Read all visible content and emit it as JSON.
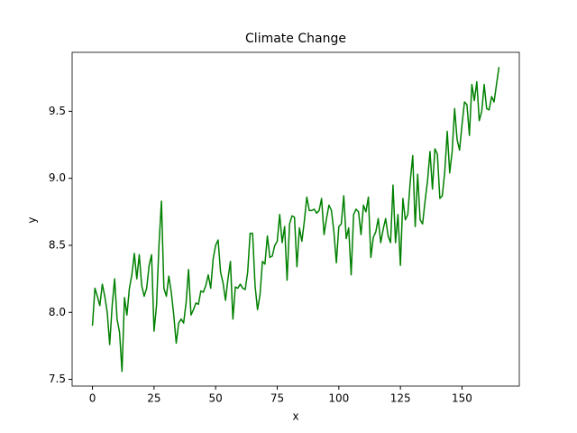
{
  "chart_data": {
    "type": "line",
    "title": "Climate Change",
    "x_label": "x",
    "y_label": "y",
    "x": [
      0,
      1,
      2,
      3,
      4,
      5,
      6,
      7,
      8,
      9,
      10,
      11,
      12,
      13,
      14,
      15,
      16,
      17,
      18,
      19,
      20,
      21,
      22,
      23,
      24,
      25,
      26,
      27,
      28,
      29,
      30,
      31,
      32,
      33,
      34,
      35,
      36,
      37,
      38,
      39,
      40,
      41,
      42,
      43,
      44,
      45,
      46,
      47,
      48,
      49,
      50,
      51,
      52,
      53,
      54,
      55,
      56,
      57,
      58,
      59,
      60,
      61,
      62,
      63,
      64,
      65,
      66,
      67,
      68,
      69,
      70,
      71,
      72,
      73,
      74,
      75,
      76,
      77,
      78,
      79,
      80,
      81,
      82,
      83,
      84,
      85,
      86,
      87,
      88,
      89,
      90,
      91,
      92,
      93,
      94,
      95,
      96,
      97,
      98,
      99,
      100,
      101,
      102,
      103,
      104,
      105,
      106,
      107,
      108,
      109,
      110,
      111,
      112,
      113,
      114,
      115,
      116,
      117,
      118,
      119,
      120,
      121,
      122,
      123,
      124,
      125,
      126,
      127,
      128,
      129,
      130,
      131,
      132,
      133,
      134,
      135,
      136,
      137,
      138,
      139,
      140,
      141,
      142,
      143,
      144,
      145,
      146,
      147,
      148,
      149,
      150,
      151,
      152,
      153,
      154,
      155,
      156,
      157,
      158,
      159,
      160,
      161,
      162,
      163,
      164,
      165
    ],
    "series": [
      {
        "color": "#008000",
        "values": [
          7.9,
          8.18,
          8.12,
          8.05,
          8.21,
          8.12,
          8.0,
          7.76,
          8.05,
          8.25,
          7.95,
          7.85,
          7.56,
          8.11,
          7.98,
          8.18,
          8.28,
          8.44,
          8.25,
          8.43,
          8.2,
          8.12,
          8.18,
          8.35,
          8.43,
          7.86,
          8.05,
          8.5,
          8.83,
          8.18,
          8.12,
          8.27,
          8.15,
          7.98,
          7.77,
          7.92,
          7.95,
          7.92,
          8.07,
          8.32,
          7.98,
          8.02,
          8.07,
          8.06,
          8.16,
          8.15,
          8.2,
          8.28,
          8.18,
          8.4,
          8.5,
          8.54,
          8.3,
          8.22,
          8.09,
          8.25,
          8.38,
          7.95,
          8.19,
          8.18,
          8.21,
          8.18,
          8.17,
          8.3,
          8.59,
          8.59,
          8.2,
          8.02,
          8.13,
          8.38,
          8.36,
          8.57,
          8.41,
          8.42,
          8.5,
          8.53,
          8.73,
          8.52,
          8.64,
          8.24,
          8.66,
          8.72,
          8.71,
          8.34,
          8.63,
          8.53,
          8.68,
          8.86,
          8.76,
          8.76,
          8.77,
          8.74,
          8.76,
          8.85,
          8.58,
          8.7,
          8.8,
          8.76,
          8.6,
          8.37,
          8.64,
          8.66,
          8.87,
          8.55,
          8.63,
          8.28,
          8.73,
          8.77,
          8.75,
          8.58,
          8.8,
          8.75,
          8.86,
          8.41,
          8.56,
          8.6,
          8.7,
          8.52,
          8.62,
          8.7,
          8.57,
          8.52,
          8.95,
          8.52,
          8.73,
          8.35,
          8.85,
          8.69,
          8.73,
          8.98,
          9.17,
          8.64,
          9.03,
          8.69,
          8.66,
          8.83,
          8.98,
          9.2,
          8.92,
          9.22,
          9.18,
          8.85,
          8.87,
          9.05,
          9.35,
          9.04,
          9.2,
          9.52,
          9.29,
          9.21,
          9.4,
          9.57,
          9.55,
          9.32,
          9.7,
          9.58,
          9.72,
          9.43,
          9.5,
          9.7,
          9.52,
          9.51,
          9.61,
          9.57,
          9.7,
          9.83
        ]
      }
    ],
    "xlim": [
      -8.25,
      173.25
    ],
    "xticks": [
      0,
      25,
      50,
      75,
      100,
      125,
      150
    ],
    "ylim": [
      7.45,
      9.94
    ],
    "yticks": [
      7.5,
      {
        "value": 8,
        "label": "8.0"
      },
      8.5,
      {
        "value": 9,
        "label": "9.0"
      },
      9.5
    ]
  }
}
